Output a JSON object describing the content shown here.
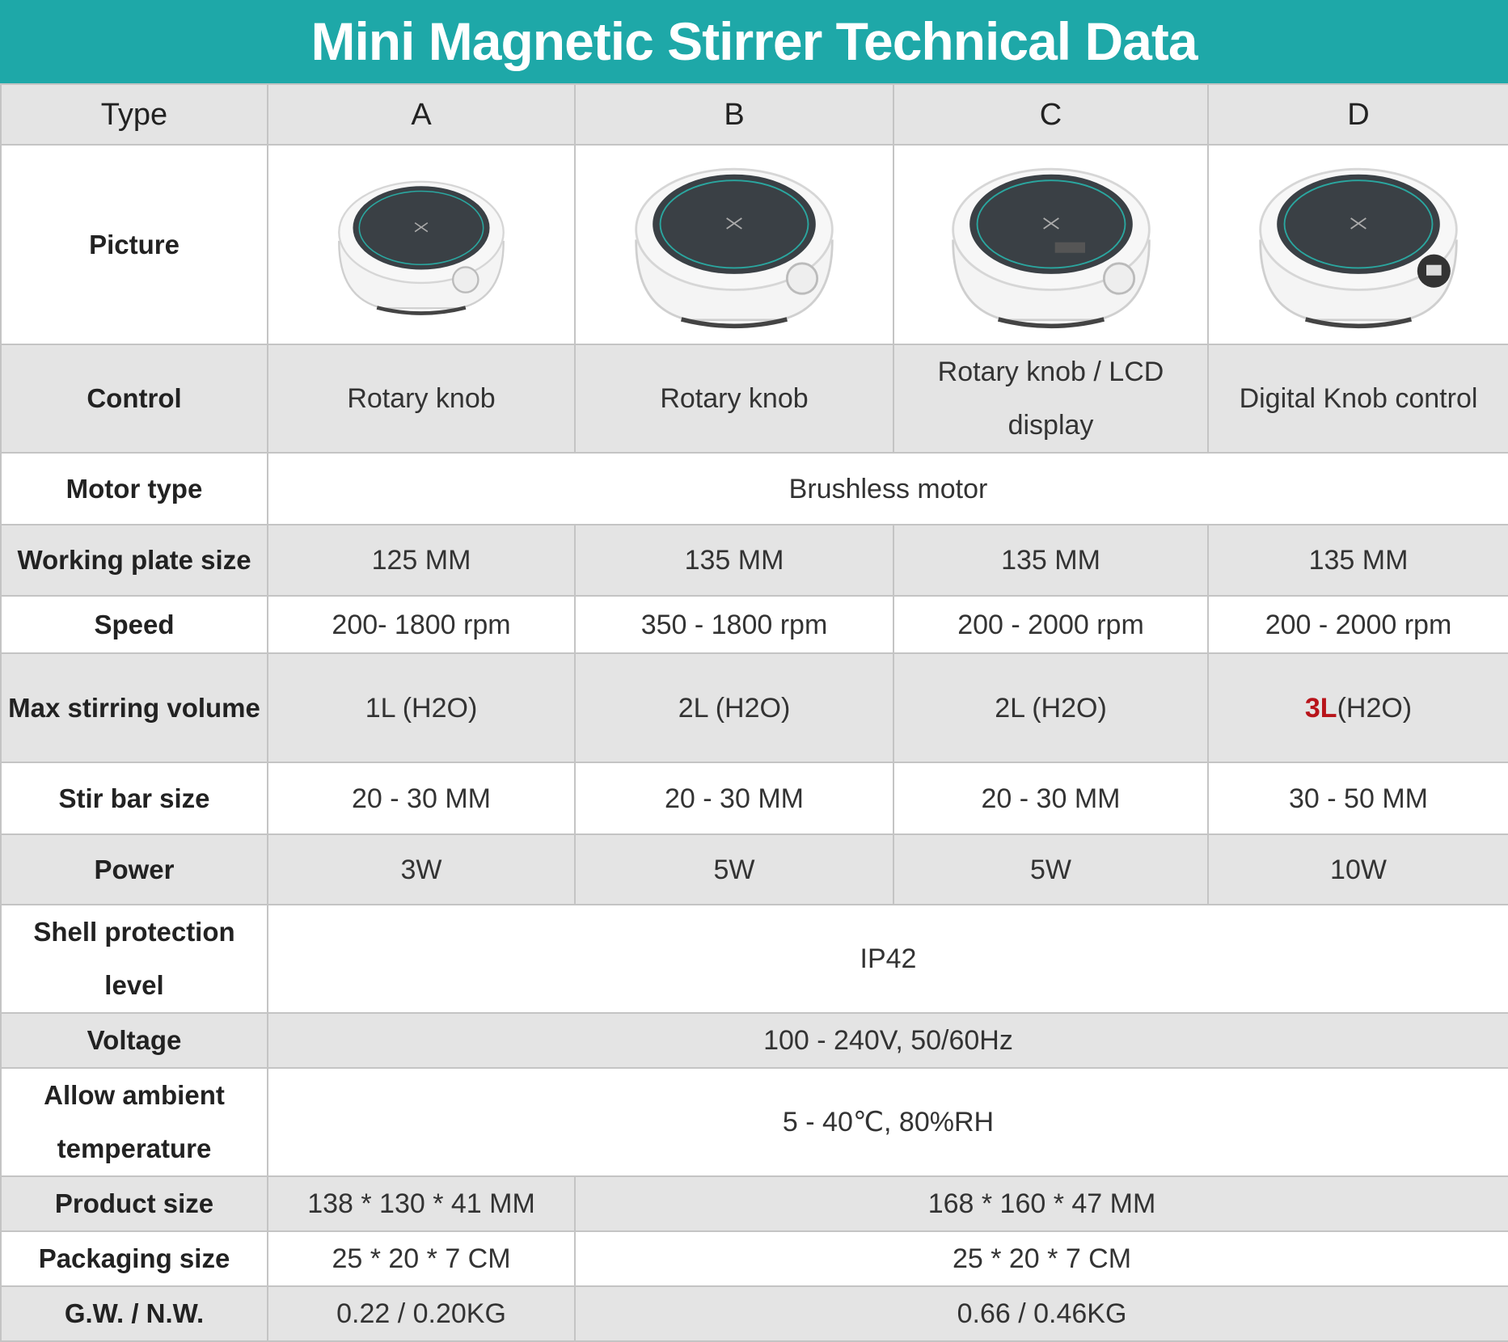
{
  "header": {
    "title": "Mini Magnetic Stirrer Technical Data"
  },
  "table": {
    "columns": [
      "Type",
      "A",
      "B",
      "C",
      "D"
    ],
    "rows": [
      {
        "label": "Picture",
        "cells": []
      },
      {
        "label": "Control",
        "cells": [
          "Rotary knob",
          "Rotary knob",
          "Rotary knob / LCD display",
          "Digital Knob control"
        ]
      },
      {
        "label": "Motor type",
        "cells": [
          "Brushless motor"
        ]
      },
      {
        "label": "Working plate size",
        "cells": [
          "125 MM",
          "135 MM",
          "135 MM",
          "135 MM"
        ]
      },
      {
        "label": "Speed",
        "cells": [
          "200- 1800 rpm",
          "350 - 1800 rpm",
          "200 - 2000 rpm",
          "200 - 2000 rpm"
        ]
      },
      {
        "label": "Max stirring volume",
        "cells": [
          "1L (H2O)",
          "2L (H2O)",
          "2L (H2O)",
          {
            "highlight": "3L",
            "text": "(H2O)"
          }
        ]
      },
      {
        "label": "Stir bar size",
        "cells": [
          "20 - 30 MM",
          "20 - 30 MM",
          "20 - 30 MM",
          "30 - 50 MM"
        ]
      },
      {
        "label": "Power",
        "cells": [
          "3W",
          "5W",
          "5W",
          "10W"
        ]
      },
      {
        "label": "Shell protection level",
        "cells": [
          "IP42"
        ]
      },
      {
        "label": "Voltage",
        "cells": [
          "100 - 240V, 50/60Hz"
        ]
      },
      {
        "label": "Allow ambient temperature",
        "cells": [
          "5 - 40℃, 80%RH"
        ]
      },
      {
        "label": "Product size",
        "cells": [
          "138 * 130 * 41 MM",
          "168 * 160 * 47 MM"
        ]
      },
      {
        "label": "Packaging size",
        "cells": [
          "25 * 20 * 7 CM",
          "25 * 20 * 7 CM"
        ]
      },
      {
        "label": "G.W. / N.W.",
        "cells": [
          "0.22 / 0.20KG",
          "0.66 / 0.46KG"
        ]
      }
    ]
  }
}
